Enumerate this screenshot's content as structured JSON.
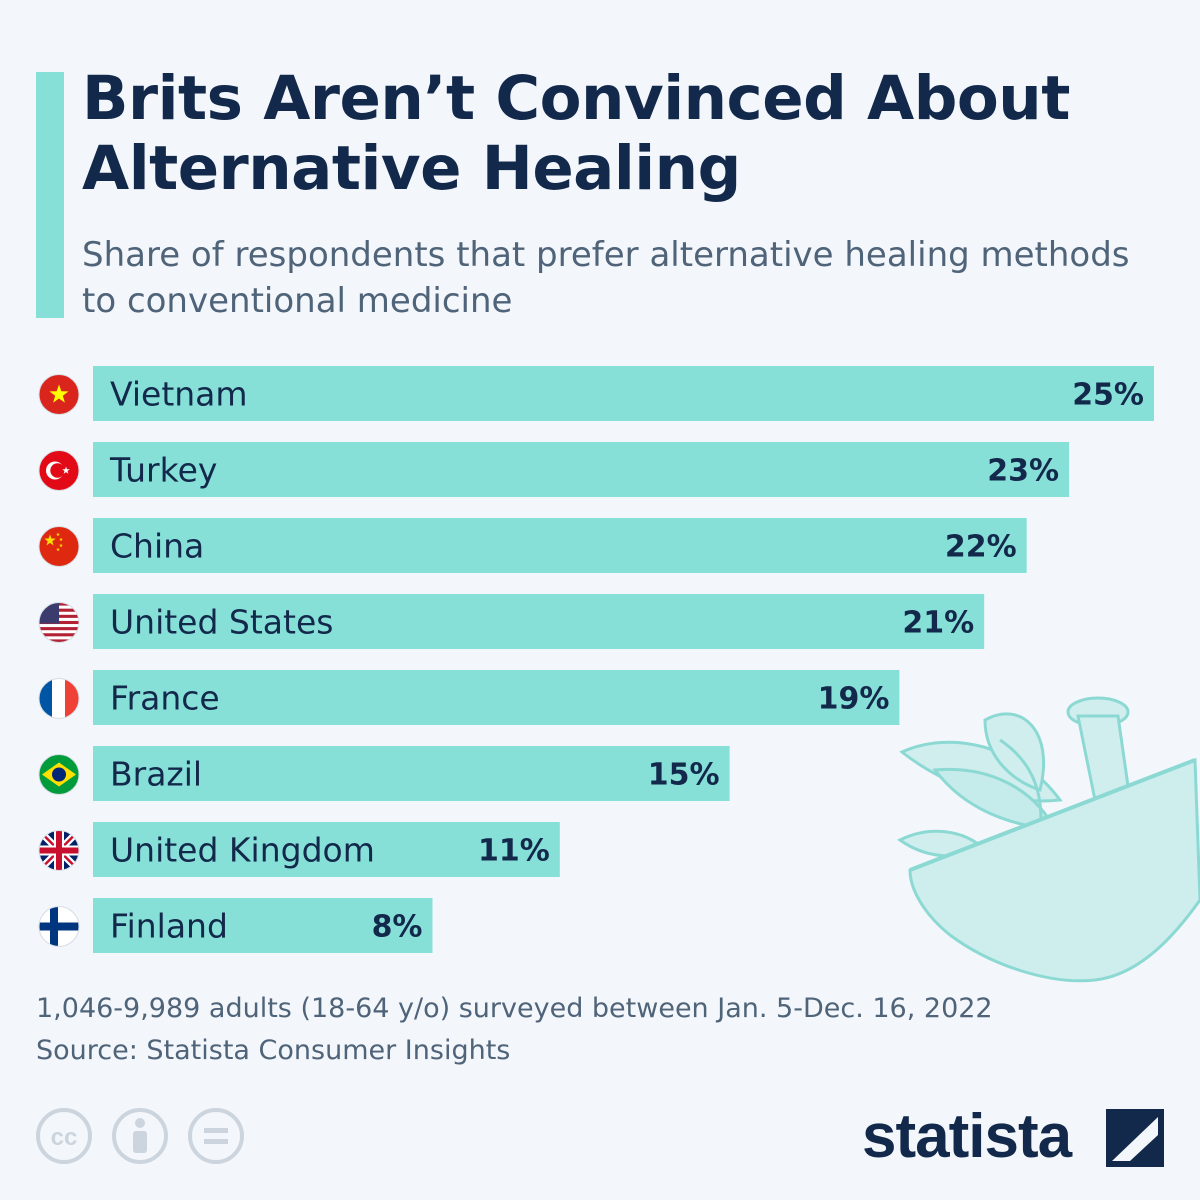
{
  "header": {
    "title": "Brits Aren’t Convinced About Alternative Healing",
    "subtitle": "Share of respondents that prefer alternative healing methods to conventional medicine"
  },
  "chart_data": {
    "type": "bar",
    "orientation": "horizontal",
    "categories": [
      "Vietnam",
      "Turkey",
      "China",
      "United States",
      "France",
      "Brazil",
      "United Kingdom",
      "Finland"
    ],
    "values": [
      25,
      23,
      22,
      21,
      19,
      15,
      11,
      8
    ],
    "value_labels": [
      "25%",
      "23%",
      "22%",
      "21%",
      "19%",
      "15%",
      "11%",
      "8%"
    ],
    "flags": [
      "vietnam-flag-icon",
      "turkey-flag-icon",
      "china-flag-icon",
      "united-states-flag-icon",
      "france-flag-icon",
      "brazil-flag-icon",
      "united-kingdom-flag-icon",
      "finland-flag-icon"
    ],
    "xlim": [
      0,
      25
    ],
    "unit": "%",
    "bar_color": "#87e0d8",
    "title": "Brits Aren’t Convinced About Alternative Healing",
    "xlabel": "",
    "ylabel": ""
  },
  "illustration": {
    "icon": "mortar-pestle-herbs-icon"
  },
  "footer": {
    "survey_note": "1,046-9,989 adults (18-64 y/o) surveyed between Jan. 5-Dec. 16, 2022",
    "source": "Source: Statista Consumer Insights",
    "license_icons": [
      "creative-commons-icon",
      "attribution-icon",
      "no-derivatives-icon"
    ],
    "brand": "statista"
  },
  "colors": {
    "accent": "#87e0d8",
    "text": "#13294b",
    "muted": "#4f6379",
    "background": "#f3f7fb"
  }
}
